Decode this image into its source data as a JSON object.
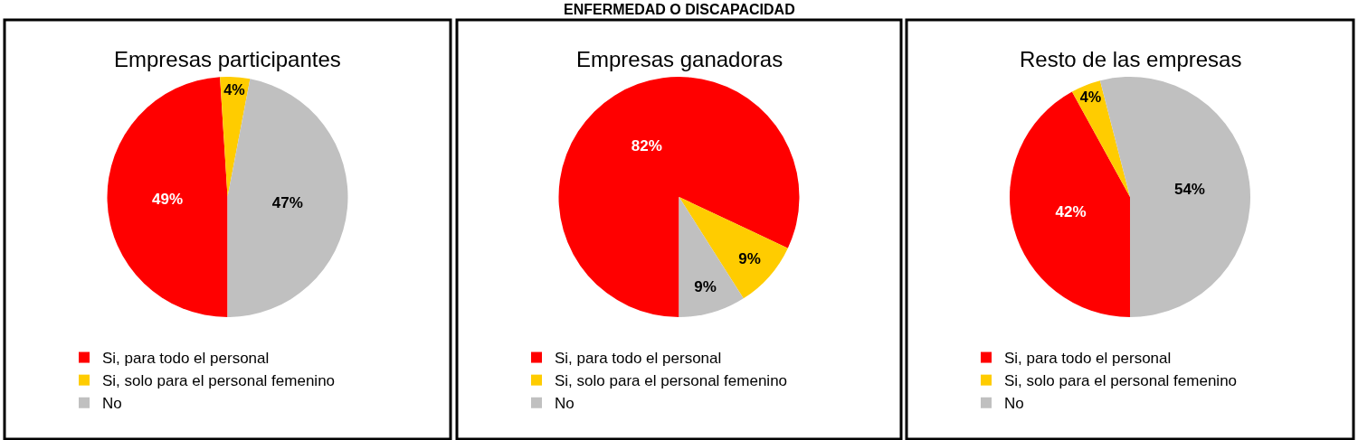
{
  "chart_data": [
    {
      "type": "pie",
      "title": "Empresas participantes",
      "categories": [
        "Si, para todo el personal",
        "Si, solo para el personal femenino",
        "No"
      ],
      "values": [
        49,
        4,
        47
      ],
      "value_labels": [
        "49%",
        "4%",
        "47%"
      ],
      "colors": [
        "#ff0000",
        "#ffcc00",
        "#c0c0c0"
      ],
      "legend": "bottom left"
    },
    {
      "type": "pie",
      "title": "Empresas ganadoras",
      "annotations": [
        "ENFERMEDAD O DISCAPACIDAD"
      ],
      "categories": [
        "Si, para todo el personal",
        "Si, solo para el personal femenino",
        "No"
      ],
      "values": [
        82,
        9,
        9
      ],
      "value_labels": [
        "82%",
        "9%",
        "9%"
      ],
      "colors": [
        "#ff0000",
        "#ffcc00",
        "#c0c0c0"
      ],
      "legend": "bottom left"
    },
    {
      "type": "pie",
      "title": "Resto de las empresas",
      "categories": [
        "Si, para todo el personal",
        "Si, solo para el personal femenino",
        "No"
      ],
      "values": [
        42,
        4,
        54
      ],
      "value_labels": [
        "42%",
        "4%",
        "54%"
      ],
      "colors": [
        "#ff0000",
        "#ffcc00",
        "#c0c0c0"
      ],
      "legend": "bottom left"
    }
  ]
}
